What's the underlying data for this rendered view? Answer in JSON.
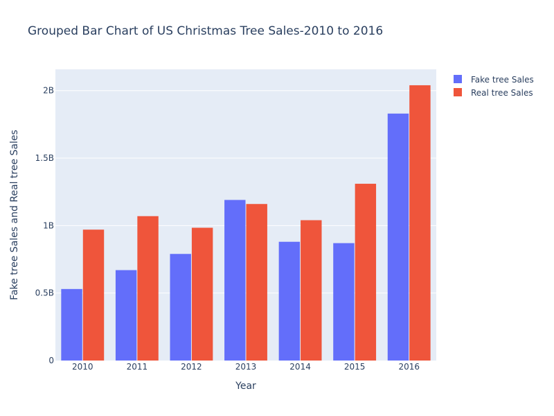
{
  "chart_data": {
    "type": "bar",
    "title": "Grouped Bar Chart of US Christmas Tree Sales-2010 to 2016",
    "xlabel": "Year",
    "ylabel": "Fake tree Sales and Real tree Sales",
    "categories": [
      "2010",
      "2011",
      "2012",
      "2013",
      "2014",
      "2015",
      "2016"
    ],
    "series": [
      {
        "name": "Fake tree Sales",
        "color": "#636efa",
        "values": [
          530000000,
          670000000,
          790000000,
          1190000000,
          880000000,
          870000000,
          1830000000
        ]
      },
      {
        "name": "Real tree Sales",
        "color": "#ef553b",
        "values": [
          970000000,
          1070000000,
          984000000,
          1160000000,
          1040000000,
          1310000000,
          2040000000
        ]
      }
    ],
    "ylim": [
      0,
      2157894737
    ],
    "yticks": [
      0,
      500000000,
      1000000000,
      1500000000,
      2000000000
    ],
    "ytick_labels": [
      "0",
      "0.5B",
      "1B",
      "1.5B",
      "2B"
    ],
    "grid": true,
    "legend_position": "top-right",
    "plot_bgcolor": "#e5ecf6"
  }
}
